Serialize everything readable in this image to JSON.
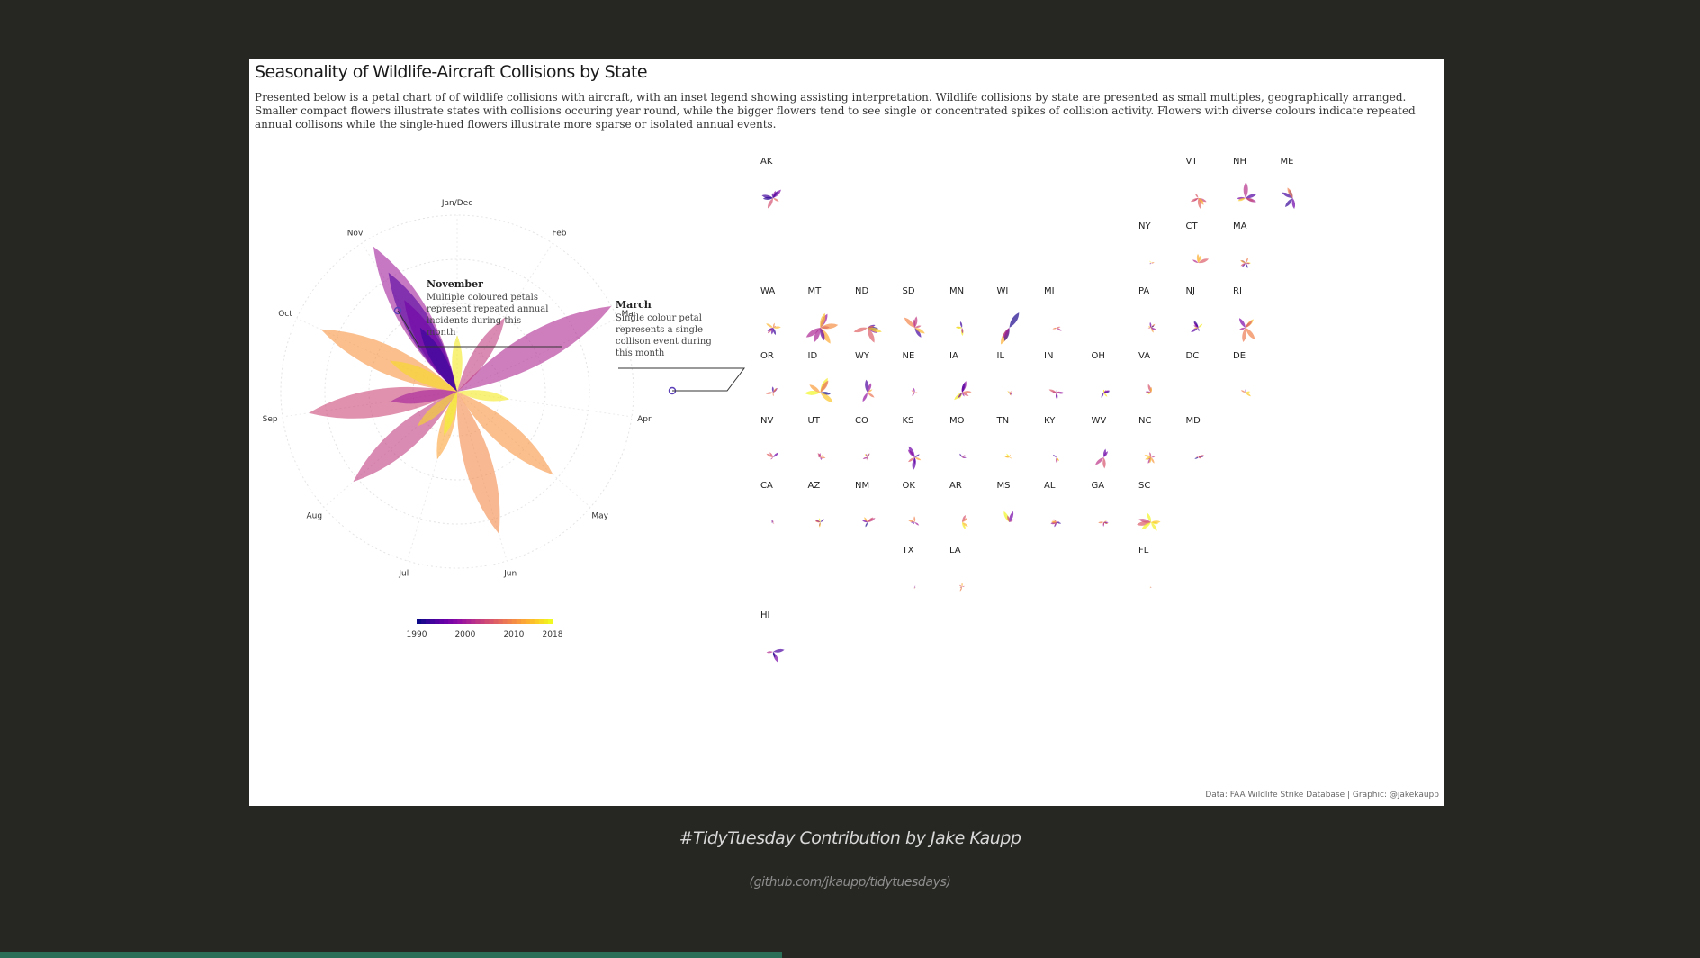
{
  "slide": {
    "caption": "#TidyTuesday Contribution by Jake Kaupp",
    "caption_link": "(github.com/jkaupp/tidytuesdays)",
    "progress": 0.46,
    "colors": {
      "background": "#262722",
      "progress": "#2b6e58"
    }
  },
  "chart_data": {
    "type": "petal",
    "title": "Seasonality of Wildlife-Aircraft Collisions by State",
    "subtitle": "Presented below is a petal chart of of wildlife collisions with aircraft, with an inset legend showing assisting interpretation. Wildlife collisions by state are presented as small multiples, geographically arranged. Smaller compact flowers illustrate states with collisions occuring year round, while the bigger flowers tend to see single or concentrated spikes of collision activity. Flowers with diverse colours indicate repeated annual collisons while the single-hued flowers illustrate more sparse or isolated annual events.",
    "source": "Data: FAA Wildlife Strike Database | Graphic: @jakekaupp",
    "months": [
      "Jan/Dec",
      "Feb",
      "Mar",
      "Apr",
      "May",
      "Jun",
      "Jul",
      "Aug",
      "Sep",
      "Oct",
      "Nov"
    ],
    "annotations": [
      {
        "month": "November",
        "text": [
          "Multiple coloured petals",
          "represent repeated annual",
          "incidents during this",
          "month"
        ]
      },
      {
        "month": "March",
        "text": [
          "Single colour petal",
          "represents a single",
          "collison event during",
          "this month"
        ]
      }
    ],
    "color_scale": {
      "ticks": [
        "1990",
        "2000",
        "2010",
        "2018"
      ],
      "min": 1990,
      "max": 2018,
      "palette": "plasma"
    },
    "legend_petals": [
      {
        "month": "Mar",
        "value": 1.0,
        "year": 2001
      },
      {
        "month": "Nov",
        "value": 0.95,
        "year": 2000
      },
      {
        "month": "Nov",
        "value": 0.78,
        "year": 1994
      },
      {
        "month": "Nov",
        "value": 0.6,
        "year": 1996
      },
      {
        "month": "Nov",
        "value": 0.42,
        "year": 1992
      },
      {
        "month": "Oct",
        "value": 0.85,
        "year": 2011
      },
      {
        "month": "Sep",
        "value": 0.85,
        "year": 2004
      },
      {
        "month": "Aug",
        "value": 0.78,
        "year": 2003
      },
      {
        "month": "Jun",
        "value": 0.84,
        "year": 2010
      },
      {
        "month": "May",
        "value": 0.72,
        "year": 2011
      },
      {
        "month": "Jul",
        "value": 0.4,
        "year": 2012
      },
      {
        "month": "Feb",
        "value": 0.5,
        "year": 2003
      },
      {
        "month": "Oct",
        "value": 0.42,
        "year": 2016
      },
      {
        "month": "Jan/Dec",
        "value": 0.32,
        "year": 2017
      },
      {
        "month": "Apr",
        "value": 0.3,
        "year": 2017
      },
      {
        "month": "Sep",
        "value": 0.38,
        "year": 2000
      },
      {
        "month": "Aug",
        "value": 0.3,
        "year": 2016
      },
      {
        "month": "Jul",
        "value": 0.26,
        "year": 2018
      }
    ],
    "states": [
      {
        "abbr": "AK",
        "col": 0,
        "row": 0,
        "scale": 0.5
      },
      {
        "abbr": "VT",
        "col": 9,
        "row": 0,
        "scale": 0.6
      },
      {
        "abbr": "NH",
        "col": 10,
        "row": 0,
        "scale": 0.7
      },
      {
        "abbr": "ME",
        "col": 11,
        "row": 0,
        "scale": 0.8
      },
      {
        "abbr": "NY",
        "col": 8,
        "row": 1,
        "scale": 0.15
      },
      {
        "abbr": "CT",
        "col": 9,
        "row": 1,
        "scale": 0.45
      },
      {
        "abbr": "MA",
        "col": 10,
        "row": 1,
        "scale": 0.25
      },
      {
        "abbr": "WA",
        "col": 0,
        "row": 2,
        "scale": 0.35
      },
      {
        "abbr": "MT",
        "col": 1,
        "row": 2,
        "scale": 0.75
      },
      {
        "abbr": "ND",
        "col": 2,
        "row": 2,
        "scale": 0.75
      },
      {
        "abbr": "SD",
        "col": 3,
        "row": 2,
        "scale": 0.65
      },
      {
        "abbr": "MN",
        "col": 4,
        "row": 2,
        "scale": 0.4
      },
      {
        "abbr": "WI",
        "col": 5,
        "row": 2,
        "scale": 0.8
      },
      {
        "abbr": "MI",
        "col": 6,
        "row": 2,
        "scale": 0.3
      },
      {
        "abbr": "PA",
        "col": 8,
        "row": 2,
        "scale": 0.25
      },
      {
        "abbr": "NJ",
        "col": 9,
        "row": 2,
        "scale": 0.35
      },
      {
        "abbr": "RI",
        "col": 10,
        "row": 2,
        "scale": 0.65
      },
      {
        "abbr": "OR",
        "col": 0,
        "row": 3,
        "scale": 0.3
      },
      {
        "abbr": "ID",
        "col": 1,
        "row": 3,
        "scale": 0.7
      },
      {
        "abbr": "WY",
        "col": 2,
        "row": 3,
        "scale": 0.6
      },
      {
        "abbr": "NE",
        "col": 3,
        "row": 3,
        "scale": 0.22
      },
      {
        "abbr": "IA",
        "col": 4,
        "row": 3,
        "scale": 0.5
      },
      {
        "abbr": "IL",
        "col": 5,
        "row": 3,
        "scale": 0.15
      },
      {
        "abbr": "IN",
        "col": 6,
        "row": 3,
        "scale": 0.35
      },
      {
        "abbr": "OH",
        "col": 7,
        "row": 3,
        "scale": 0.25
      },
      {
        "abbr": "VA",
        "col": 8,
        "row": 3,
        "scale": 0.4
      },
      {
        "abbr": "DC",
        "col": 9,
        "row": 3,
        "scale": 0.0
      },
      {
        "abbr": "DE",
        "col": 10,
        "row": 3,
        "scale": 0.35
      },
      {
        "abbr": "NV",
        "col": 0,
        "row": 4,
        "scale": 0.35
      },
      {
        "abbr": "UT",
        "col": 1,
        "row": 4,
        "scale": 0.22
      },
      {
        "abbr": "CO",
        "col": 2,
        "row": 4,
        "scale": 0.2
      },
      {
        "abbr": "KS",
        "col": 3,
        "row": 4,
        "scale": 0.6
      },
      {
        "abbr": "MO",
        "col": 4,
        "row": 4,
        "scale": 0.2
      },
      {
        "abbr": "TN",
        "col": 5,
        "row": 4,
        "scale": 0.2
      },
      {
        "abbr": "KY",
        "col": 6,
        "row": 4,
        "scale": 0.25
      },
      {
        "abbr": "WV",
        "col": 7,
        "row": 4,
        "scale": 0.55
      },
      {
        "abbr": "NC",
        "col": 8,
        "row": 4,
        "scale": 0.3
      },
      {
        "abbr": "MD",
        "col": 9,
        "row": 4,
        "scale": 0.25
      },
      {
        "abbr": "CA",
        "col": 0,
        "row": 5,
        "scale": 0.15
      },
      {
        "abbr": "AZ",
        "col": 1,
        "row": 5,
        "scale": 0.4
      },
      {
        "abbr": "NM",
        "col": 2,
        "row": 5,
        "scale": 0.35
      },
      {
        "abbr": "OK",
        "col": 3,
        "row": 5,
        "scale": 0.3
      },
      {
        "abbr": "AR",
        "col": 4,
        "row": 5,
        "scale": 0.35
      },
      {
        "abbr": "MS",
        "col": 5,
        "row": 5,
        "scale": 0.55
      },
      {
        "abbr": "AL",
        "col": 6,
        "row": 5,
        "scale": 0.25
      },
      {
        "abbr": "GA",
        "col": 7,
        "row": 5,
        "scale": 0.25
      },
      {
        "abbr": "SC",
        "col": 8,
        "row": 5,
        "scale": 0.6
      },
      {
        "abbr": "TX",
        "col": 3,
        "row": 6,
        "scale": 0.1
      },
      {
        "abbr": "LA",
        "col": 4,
        "row": 6,
        "scale": 0.2
      },
      {
        "abbr": "FL",
        "col": 8,
        "row": 6,
        "scale": 0.1
      },
      {
        "abbr": "HI",
        "col": 0,
        "row": 7,
        "scale": 0.55
      }
    ]
  }
}
